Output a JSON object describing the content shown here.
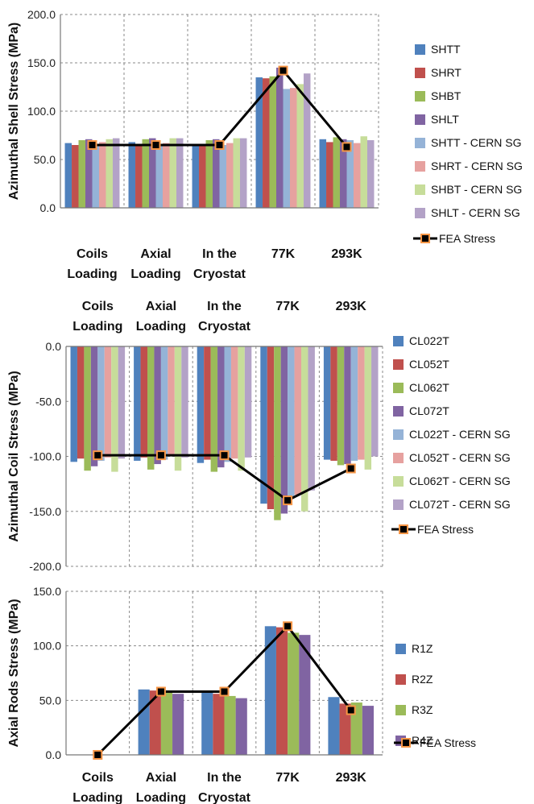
{
  "categories": [
    [
      "Coils",
      "Loading"
    ],
    [
      "Axial",
      "Loading"
    ],
    [
      "In the",
      "Cryostat"
    ],
    [
      "77K"
    ],
    [
      "293K"
    ]
  ],
  "colors": {
    "blue": "#4F81BD",
    "red": "#C0504D",
    "green": "#9BBB59",
    "purple": "#8064A2",
    "lblue": "#95B3D7",
    "lred": "#E6A19F",
    "lgreen": "#C7DD9A",
    "lpurple": "#B3A2C7",
    "fea_line": "#000000",
    "fea_marker_edge": "#F79646"
  },
  "chart_data": [
    {
      "type": "bar",
      "ylabel": "Azimuthal Shell Stress (MPa)",
      "ylim": [
        0,
        200
      ],
      "yticks": [
        "0.0",
        "50.0",
        "100.0",
        "150.0",
        "200.0"
      ],
      "grid": "dashed",
      "legend": "right",
      "series": [
        {
          "name": "SHTT",
          "color": "blue",
          "values": [
            67,
            68,
            66,
            135,
            71
          ]
        },
        {
          "name": "SHRT",
          "color": "red",
          "values": [
            65,
            66,
            65,
            134,
            68
          ]
        },
        {
          "name": "SHBT",
          "color": "green",
          "values": [
            70,
            71,
            70,
            136,
            73
          ]
        },
        {
          "name": "SHLT",
          "color": "purple",
          "values": [
            71,
            72,
            71,
            145,
            71
          ]
        },
        {
          "name": "SHTT - CERN SG",
          "color": "lblue",
          "values": [
            66,
            66,
            65,
            123,
            70
          ]
        },
        {
          "name": "SHRT - CERN SG",
          "color": "lred",
          "values": [
            68,
            67,
            67,
            124,
            67
          ]
        },
        {
          "name": "SHBT - CERN SG",
          "color": "lgreen",
          "values": [
            71,
            72,
            72,
            128,
            74
          ]
        },
        {
          "name": "SHLT - CERN SG",
          "color": "lpurple",
          "values": [
            72,
            72,
            72,
            139,
            70
          ]
        }
      ],
      "line": {
        "name": "FEA Stress",
        "values": [
          65,
          65,
          65,
          142,
          63
        ]
      }
    },
    {
      "type": "bar",
      "ylabel": "Azimuthal Coil Stress (MPa)",
      "ylim": [
        -200,
        0
      ],
      "yticks": [
        "-200.0",
        "-150.0",
        "-100.0",
        "-50.0",
        "0.0"
      ],
      "grid": "dashed",
      "legend": "right",
      "series": [
        {
          "name": "CL022T",
          "color": "blue",
          "values": [
            -105,
            -104,
            -106,
            -143,
            -103
          ]
        },
        {
          "name": "CL052T",
          "color": "red",
          "values": [
            -102,
            -101,
            -103,
            -148,
            -104
          ]
        },
        {
          "name": "CL062T",
          "color": "green",
          "values": [
            -113,
            -112,
            -114,
            -158,
            -108
          ]
        },
        {
          "name": "CL072T",
          "color": "purple",
          "values": [
            -109,
            -107,
            -110,
            -152,
            -107
          ]
        },
        {
          "name": "CL022T - CERN SG",
          "color": "lblue",
          "values": [
            -104,
            -103,
            -105,
            -137,
            -104
          ]
        },
        {
          "name": "CL052T - CERN SG",
          "color": "lred",
          "values": [
            -101,
            -100,
            -102,
            -135,
            -103
          ]
        },
        {
          "name": "CL062T - CERN SG",
          "color": "lgreen",
          "values": [
            -114,
            -113,
            -113,
            -150,
            -112
          ]
        },
        {
          "name": "CL072T - CERN SG",
          "color": "lpurple",
          "values": [
            -102,
            -101,
            -101,
            -131,
            -100
          ]
        }
      ],
      "line": {
        "name": "FEA Stress",
        "values": [
          -99,
          -99,
          -99,
          -140,
          -111
        ]
      }
    },
    {
      "type": "bar",
      "ylabel": "Axial Rods Stress (MPa)",
      "ylim": [
        0,
        150
      ],
      "yticks": [
        "0.0",
        "50.0",
        "100.0",
        "150.0"
      ],
      "grid": "dashed",
      "legend": "right",
      "series": [
        {
          "name": "R1Z",
          "color": "blue",
          "values": [
            0,
            60,
            57,
            118,
            53
          ]
        },
        {
          "name": "R2Z",
          "color": "red",
          "values": [
            0,
            59,
            56,
            117,
            47
          ]
        },
        {
          "name": "R3Z",
          "color": "green",
          "values": [
            0,
            57,
            54,
            112,
            48
          ]
        },
        {
          "name": "R4Z",
          "color": "purple",
          "values": [
            0,
            56,
            52,
            110,
            45
          ]
        }
      ],
      "line": {
        "name": "FEA Stress",
        "values": [
          0,
          58,
          58,
          118,
          41
        ]
      }
    }
  ]
}
